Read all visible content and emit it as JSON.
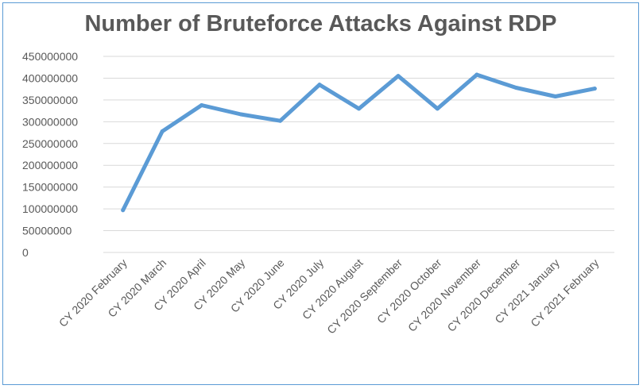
{
  "chart_data": {
    "type": "line",
    "title": "Number of Bruteforce Attacks Against RDP",
    "xlabel": "",
    "ylabel": "",
    "categories": [
      "CY 2020 February",
      "CY 2020 March",
      "CY 2020 April",
      "CY 2020 May",
      "CY 2020 June",
      "CY 2020 July",
      "CY 2020 August",
      "CY 2020 September",
      "CY 2020 October",
      "CY 2020 November",
      "CY 2020 December",
      "CY 2021 January",
      "CY 2021 February"
    ],
    "series": [
      {
        "values": [
          97000000,
          278000000,
          338000000,
          317000000,
          302000000,
          385000000,
          330000000,
          405000000,
          330000000,
          408000000,
          378000000,
          358000000,
          376000000
        ],
        "color": "#5b9bd5"
      }
    ],
    "ylim": [
      0,
      450000000
    ],
    "yticks": [
      "0",
      "50000000",
      "100000000",
      "150000000",
      "200000000",
      "250000000",
      "300000000",
      "350000000",
      "400000000",
      "450000000"
    ],
    "grid": true,
    "legend": "none",
    "colors": {
      "line": "#5b9bd5",
      "grid": "#d9d9d9",
      "text": "#595959",
      "border": "#5b9bd5"
    }
  }
}
